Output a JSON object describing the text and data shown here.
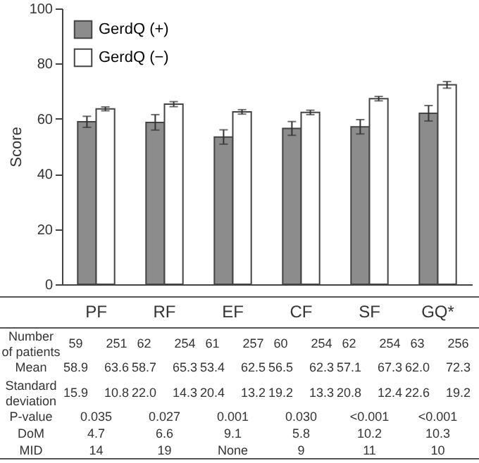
{
  "chart_data": {
    "type": "bar",
    "categories": [
      "PF",
      "RF",
      "EF",
      "CF",
      "SF",
      "GQ*"
    ],
    "series": [
      {
        "name": "GerdQ (+)",
        "color": "#8c8c8c",
        "values": [
          58.9,
          58.7,
          53.4,
          56.5,
          57.1,
          62.0
        ],
        "errors": [
          2.0,
          2.8,
          2.6,
          2.5,
          2.6,
          2.8
        ]
      },
      {
        "name": "GerdQ (−)",
        "color": "#ffffff",
        "values": [
          63.6,
          65.3,
          62.5,
          62.3,
          67.3,
          72.3
        ],
        "errors": [
          0.7,
          0.9,
          0.8,
          0.8,
          0.8,
          1.2
        ]
      }
    ],
    "ylabel": "Score",
    "ylim": [
      0,
      100
    ],
    "yticks": [
      0,
      20,
      40,
      60,
      80,
      100
    ],
    "legend": "top left",
    "annotations": [
      "Number of patients",
      "59",
      "251",
      "62",
      "254",
      "61",
      "257",
      "60",
      "254",
      "62",
      "254",
      "63",
      "256",
      "Mean",
      "58.9",
      "63.6",
      "58.7",
      "65.3",
      "53.4",
      "62.5",
      "56.5",
      "62.3",
      "57.1",
      "67.3",
      "62.0",
      "72.3",
      "Standard deviation",
      "15.9",
      "10.8",
      "22.0",
      "14.3",
      "20.4",
      "13.2",
      "19.2",
      "13.3",
      "20.8",
      "12.4",
      "22.6",
      "19.2",
      "P-value",
      "0.035",
      "0.027",
      "0.001",
      "0.030",
      "<0.001",
      "<0.001",
      "DoM",
      "4.7",
      "6.6",
      "9.1",
      "5.8",
      "10.2",
      "10.3",
      "MID",
      "14",
      "19",
      "None",
      "9",
      "11",
      "10"
    ]
  }
}
